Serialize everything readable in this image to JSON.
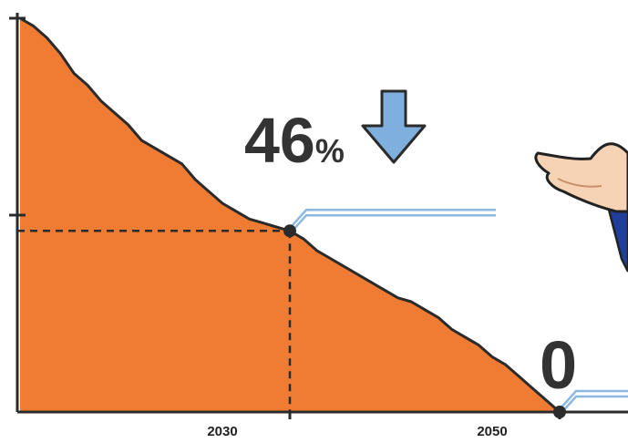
{
  "chart_data": {
    "type": "area",
    "title": "",
    "xlabel": "",
    "ylabel": "",
    "x_tick_labels": [
      "2030",
      "2050"
    ],
    "xlim": [
      2010,
      2057
    ],
    "ylim": [
      0,
      100
    ],
    "series": [
      {
        "x": [
          2010,
          2011,
          2012,
          2013,
          2014,
          2015,
          2016,
          2017,
          2018,
          2019,
          2020,
          2021,
          2022,
          2023,
          2024,
          2025,
          2026,
          2027,
          2028,
          2029,
          2030,
          2031,
          2032,
          2033,
          2034,
          2035,
          2036,
          2037,
          2038,
          2039,
          2040,
          2041,
          2042,
          2043,
          2044,
          2045,
          2046,
          2047,
          2048,
          2049,
          2050
        ],
        "y": [
          100,
          98,
          95,
          91,
          86,
          83,
          79,
          76,
          73,
          69,
          67,
          65,
          63,
          59,
          56,
          53,
          51,
          49,
          48,
          47,
          46,
          44,
          41,
          39,
          37,
          35,
          33,
          31,
          29,
          28,
          26,
          24,
          21,
          19,
          17,
          14,
          12,
          9,
          6,
          3,
          0
        ]
      }
    ],
    "markers": [
      {
        "x": 2030,
        "y": 46,
        "label": "46%",
        "number": "46",
        "unit": "%",
        "arrow": "down"
      },
      {
        "x": 2050,
        "y": 0,
        "label": "0"
      }
    ],
    "grid": false,
    "legend": "none",
    "colors": {
      "fill": "#f07c34",
      "outline": "#2b2b2b",
      "callout_line": "#8bb8e0",
      "arrow": "#7fb0dd",
      "text": "#333333"
    }
  },
  "decorations": {
    "illustration": "open-palm-hand"
  }
}
